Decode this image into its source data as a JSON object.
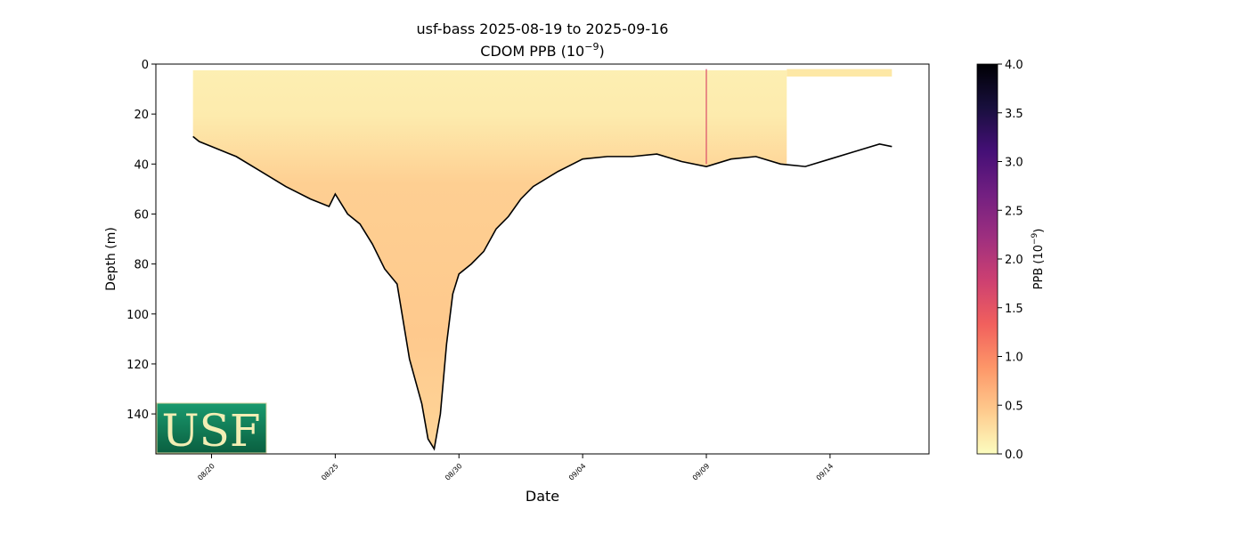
{
  "chart_data": {
    "type": "heatmap",
    "title": "usf-bass 2025-08-19 to 2025-09-16",
    "subtitle_main": "CDOM PPB (10",
    "subtitle_exp": "−9",
    "subtitle_end": ")",
    "xlabel": "Date",
    "ylabel": "Depth (m)",
    "x_range": [
      "2025-08-17 18:00",
      "2025-09-18 00:00"
    ],
    "ylim": [
      156,
      0
    ],
    "y_ticks": [
      0,
      20,
      40,
      60,
      80,
      100,
      120,
      140
    ],
    "x_ticks": [
      "08/20",
      "08/25",
      "08/30",
      "09/04",
      "09/09",
      "09/14"
    ],
    "colorbar": {
      "label_main": "PPB (10",
      "label_exp": "−9",
      "label_end": ")",
      "range": [
        0,
        4.0
      ],
      "ticks": [
        "0.0",
        "0.5",
        "1.0",
        "1.5",
        "2.0",
        "2.5",
        "3.0",
        "3.5",
        "4.0"
      ],
      "colormap": "magma_r",
      "stops": [
        "#fcfdbf",
        "#feca8d",
        "#fd9668",
        "#f1605d",
        "#cd4071",
        "#9e2f7f",
        "#721f81",
        "#440f76",
        "#180f3d",
        "#000004"
      ]
    },
    "bottom_profile": {
      "x": [
        "2025-08-19 06:00",
        "2025-08-19 12:00",
        "2025-08-20 00:00",
        "2025-08-21 00:00",
        "2025-08-22 00:00",
        "2025-08-23 00:00",
        "2025-08-24 00:00",
        "2025-08-24 18:00",
        "2025-08-25 00:00",
        "2025-08-25 12:00",
        "2025-08-26 00:00",
        "2025-08-26 12:00",
        "2025-08-27 00:00",
        "2025-08-27 12:00",
        "2025-08-28 00:00",
        "2025-08-28 12:00",
        "2025-08-28 18:00",
        "2025-08-29 00:00",
        "2025-08-29 06:00",
        "2025-08-29 12:00",
        "2025-08-29 18:00",
        "2025-08-30 00:00",
        "2025-08-30 12:00",
        "2025-08-31 00:00",
        "2025-08-31 12:00",
        "2025-09-01 00:00",
        "2025-09-01 12:00",
        "2025-09-02 00:00",
        "2025-09-03 00:00",
        "2025-09-04 00:00",
        "2025-09-05 00:00",
        "2025-09-06 00:00",
        "2025-09-07 00:00",
        "2025-09-08 00:00",
        "2025-09-09 00:00",
        "2025-09-10 00:00",
        "2025-09-11 00:00",
        "2025-09-12 00:00",
        "2025-09-13 00:00",
        "2025-09-14 00:00",
        "2025-09-15 00:00",
        "2025-09-16 00:00",
        "2025-09-16 12:00"
      ],
      "depth": [
        29,
        31,
        33,
        37,
        43,
        49,
        54,
        57,
        52,
        60,
        64,
        72,
        82,
        88,
        118,
        136,
        150,
        154,
        140,
        112,
        92,
        84,
        80,
        75,
        66,
        61,
        54,
        49,
        43,
        38,
        37,
        37,
        36,
        39,
        41,
        38,
        37,
        40,
        41,
        38,
        35,
        32,
        33
      ]
    },
    "surface_depth": 2.5,
    "data_end": "2025-09-12 06:00",
    "surface_only": {
      "x": [
        "2025-09-12 06:00",
        "2025-09-16 12:00"
      ],
      "depth": [
        2,
        5
      ]
    },
    "high_value_line": {
      "x": "2025-09-09 00:00",
      "depth_range": [
        2,
        40
      ],
      "value": 1.6
    },
    "logo_text": "USF"
  }
}
